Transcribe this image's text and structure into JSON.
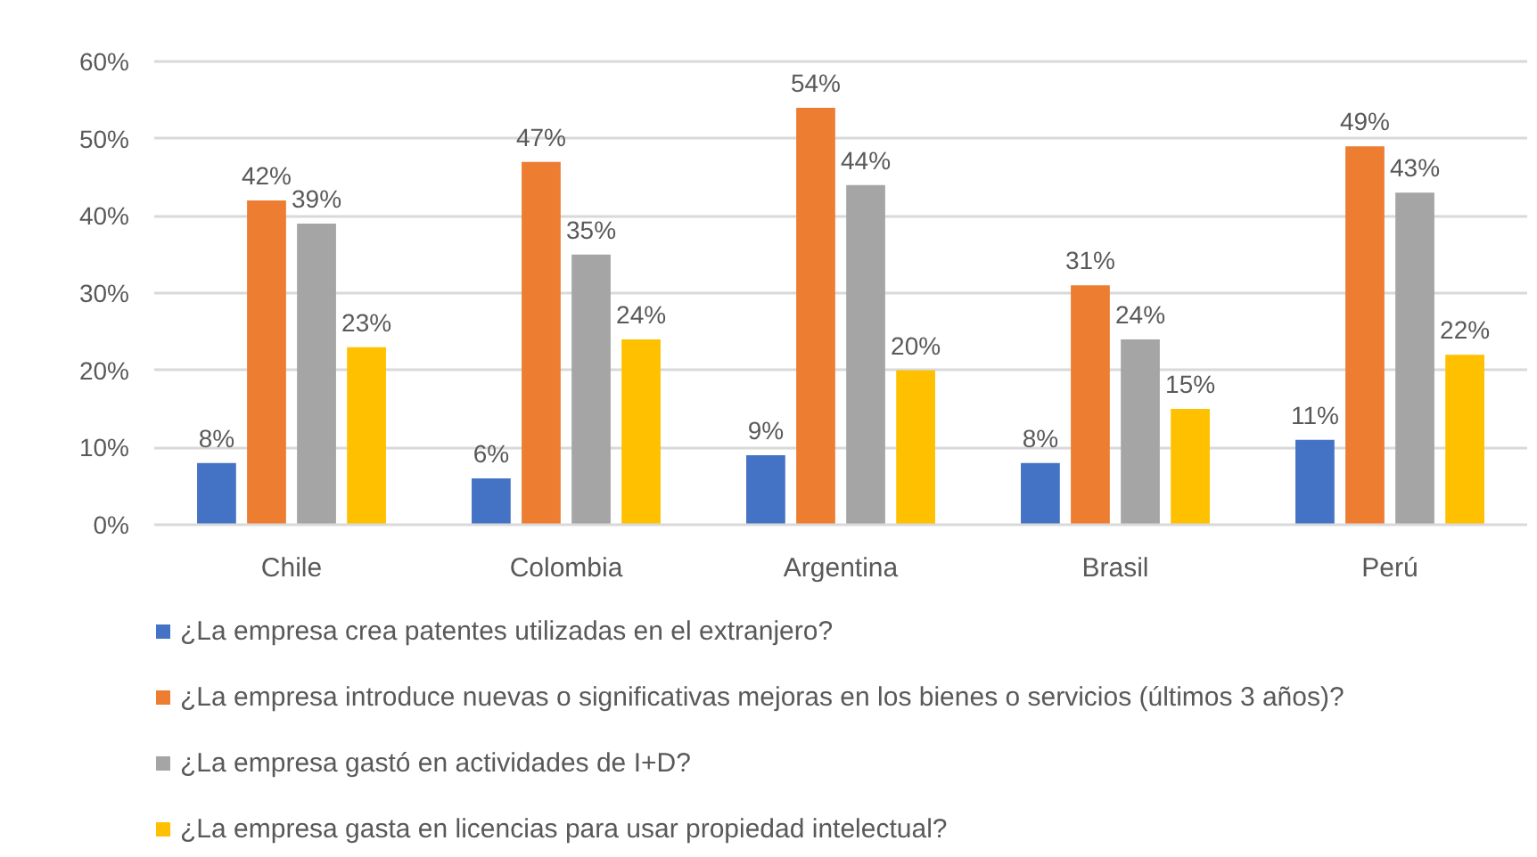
{
  "chart_data": {
    "type": "bar",
    "categories": [
      "Chile",
      "Colombia",
      "Argentina",
      "Brasil",
      "Perú"
    ],
    "series": [
      {
        "name": "¿La empresa crea patentes utilizadas en el extranjero?",
        "color": "#4472c4",
        "values": [
          8,
          6,
          9,
          8,
          11
        ],
        "value_labels": [
          "8%",
          "6%",
          "9%",
          "8%",
          "11%"
        ]
      },
      {
        "name": "¿La empresa introduce nuevas o significativas mejoras en los bienes o servicios (últimos 3 años)?",
        "color": "#ed7d31",
        "values": [
          42,
          47,
          54,
          31,
          49
        ],
        "value_labels": [
          "42%",
          "47%",
          "54%",
          "31%",
          "49%"
        ]
      },
      {
        "name": "¿La empresa gastó en actividades de I+D?",
        "color": "#a5a5a5",
        "values": [
          39,
          35,
          44,
          24,
          43
        ],
        "value_labels": [
          "39%",
          "35%",
          "44%",
          "24%",
          "43%"
        ]
      },
      {
        "name": "¿La empresa gasta en licencias para usar propiedad intelectual?",
        "color": "#ffc000",
        "values": [
          23,
          24,
          20,
          15,
          22
        ],
        "value_labels": [
          "23%",
          "24%",
          "20%",
          "15%",
          "22%"
        ]
      }
    ],
    "ylim": [
      0,
      60
    ],
    "yticks": [
      {
        "value": 0,
        "label": "0%"
      },
      {
        "value": 10,
        "label": "10%"
      },
      {
        "value": 20,
        "label": "20%"
      },
      {
        "value": 30,
        "label": "30%"
      },
      {
        "value": 40,
        "label": "40%"
      },
      {
        "value": 50,
        "label": "50%"
      },
      {
        "value": 60,
        "label": "60%"
      }
    ],
    "grid": "y",
    "legend": "bottom"
  }
}
